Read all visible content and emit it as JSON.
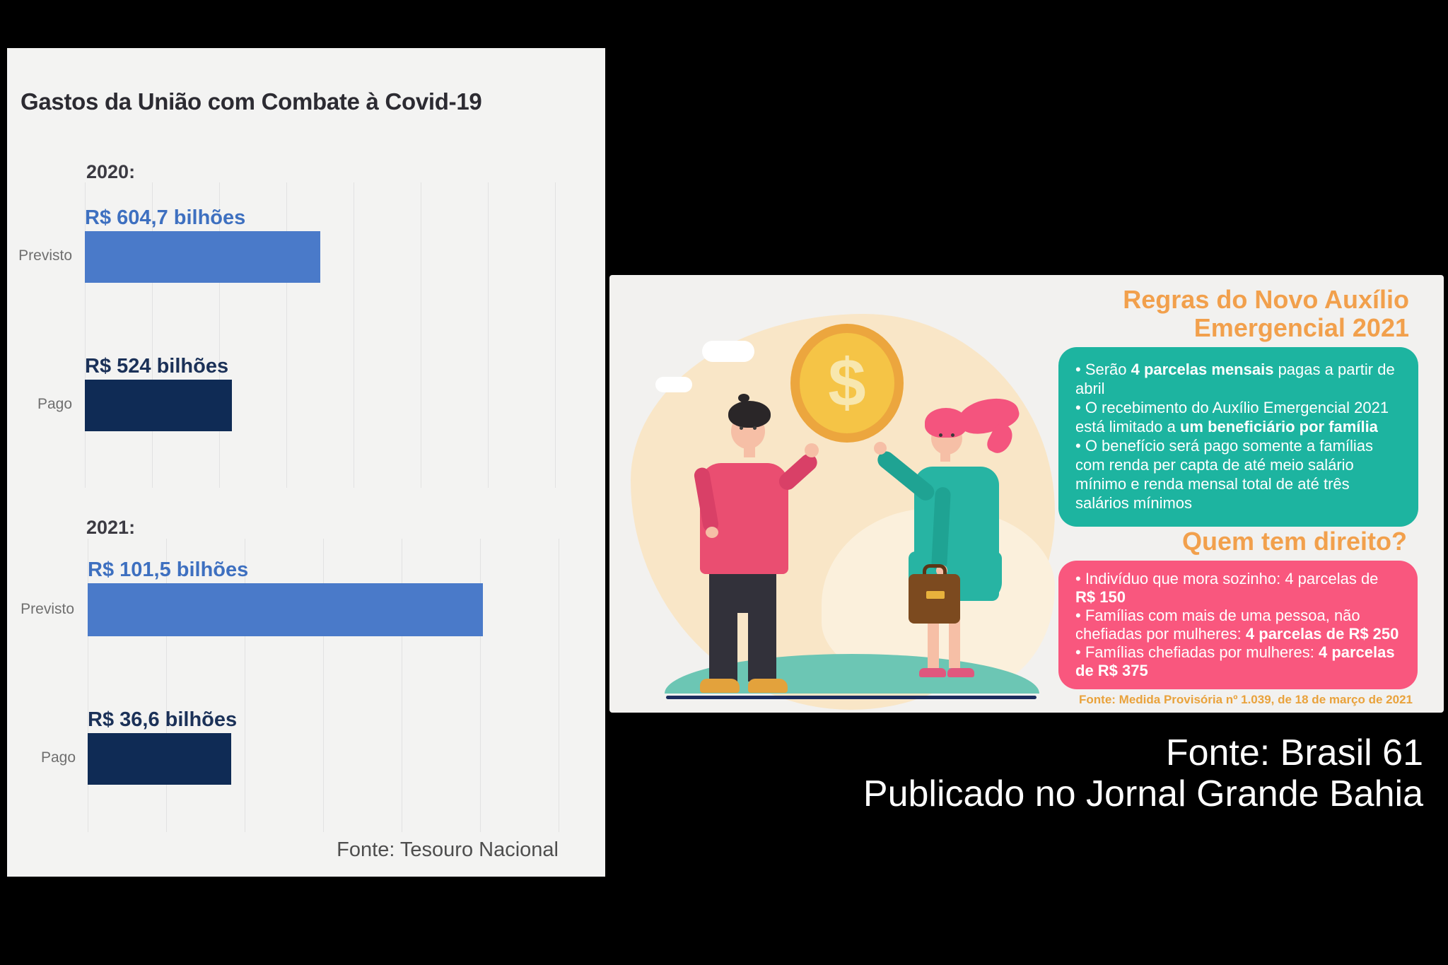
{
  "chart_panel": {
    "title": "Gastos da União com Combate à Covid-19",
    "source": "Fonte: Tesouro Nacional",
    "sections": [
      {
        "year_label": "2020:",
        "bars": [
          {
            "category": "Previsto",
            "value_label": "R$ 604,7 bilhões"
          },
          {
            "category": "Pago",
            "value_label": "R$ 524 bilhões"
          }
        ]
      },
      {
        "year_label": "2021:",
        "bars": [
          {
            "category": "Previsto",
            "value_label": "R$ 101,5 bilhões"
          },
          {
            "category": "Pago",
            "value_label": "R$ 36,6 bilhões"
          }
        ]
      }
    ]
  },
  "infographic": {
    "title": "Regras do Novo Auxílio\nEmergencial 2021",
    "coin_symbol": "$",
    "rules": {
      "paragraphs": [
        [
          {
            "t": "• Serão ",
            "b": 0
          },
          {
            "t": "4 parcelas mensais",
            "b": 1
          },
          {
            "t": " pagas a partir de abril",
            "b": 0
          }
        ],
        [
          {
            "t": "• O recebimento do Auxílio Emergencial 2021 está limitado a ",
            "b": 0
          },
          {
            "t": "um beneficiário por família",
            "b": 1
          }
        ],
        [
          {
            "t": "• O benefício será pago somente a famílias com renda per capta de até meio salário mínimo e renda mensal total de até três salários mínimos",
            "b": 0
          }
        ]
      ]
    },
    "eligibility_title": "Quem tem direito?",
    "eligibility": {
      "paragraphs": [
        [
          {
            "t": "• Indivíduo que mora sozinho: 4 parcelas de ",
            "b": 0
          },
          {
            "t": "R$ 150",
            "b": 1
          }
        ],
        [
          {
            "t": "• Famílias com mais de uma pessoa, não chefiadas por mulheres: ",
            "b": 0
          },
          {
            "t": "4 parcelas de R$ 250",
            "b": 1
          }
        ],
        [
          {
            "t": "• Famílias chefiadas por mulheres: ",
            "b": 0
          },
          {
            "t": "4 parcelas de R$ 375",
            "b": 1
          }
        ]
      ]
    },
    "source_note": "Fonte: Medida Provisória nº 1.039, de 18 de março de 2021"
  },
  "footer": {
    "line1": "Fonte: Brasil 61",
    "line2": "Publicado no Jornal Grande Bahia"
  },
  "colors": {
    "previsto_blue": "#4a7ac9",
    "pago_navy": "#0f2b55",
    "accent_orange": "#f2a04c",
    "rules_teal": "#1db4a0",
    "eligibility_pink": "#f9577e",
    "coin_gold": "#f5c446"
  },
  "chart_data": [
    {
      "type": "bar",
      "orientation": "horizontal",
      "title": "Gastos da União com Combate à Covid-19",
      "group": "2020",
      "categories": [
        "Previsto",
        "Pago"
      ],
      "values": [
        604.7,
        524
      ],
      "unit": "R$ bilhões",
      "data_labels": [
        "R$ 604,7 bilhões",
        "R$ 524 bilhões"
      ],
      "colors": [
        "#4a7ac9",
        "#0f2b55"
      ],
      "grid": "vertical-lines",
      "source": "Fonte: Tesouro Nacional"
    },
    {
      "type": "bar",
      "orientation": "horizontal",
      "title": "Gastos da União com Combate à Covid-19",
      "group": "2021",
      "categories": [
        "Previsto",
        "Pago"
      ],
      "values": [
        101.5,
        36.6
      ],
      "unit": "R$ bilhões",
      "data_labels": [
        "R$ 101,5 bilhões",
        "R$ 36,6 bilhões"
      ],
      "colors": [
        "#4a7ac9",
        "#0f2b55"
      ],
      "grid": "vertical-lines",
      "source": "Fonte: Tesouro Nacional"
    }
  ]
}
